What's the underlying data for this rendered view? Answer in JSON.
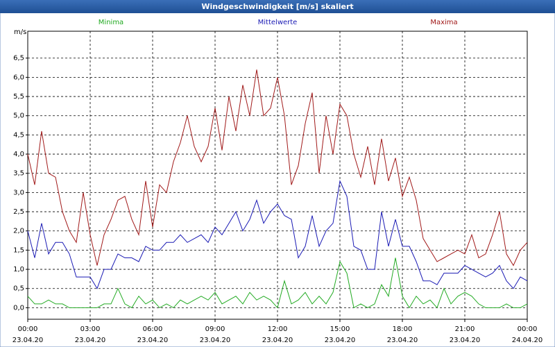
{
  "chart_data": {
    "type": "line",
    "title": "Windgeschwindigkeit [m/s] skaliert",
    "y_label": "m/s",
    "x": [
      0,
      20,
      40,
      60,
      80,
      100,
      120,
      140,
      160,
      180,
      200,
      220,
      240,
      260,
      280,
      300,
      320,
      340,
      360,
      380,
      400,
      420,
      440,
      460,
      480,
      500,
      520,
      540,
      560,
      580,
      600,
      620,
      640,
      660,
      680,
      700,
      720,
      740,
      760,
      780,
      800,
      820,
      840,
      860,
      880,
      900,
      920,
      940,
      960,
      980,
      1000,
      1020,
      1040,
      1060,
      1080,
      1100,
      1120,
      1140,
      1160,
      1180,
      1200,
      1220,
      1240,
      1260,
      1280,
      1300,
      1320,
      1340,
      1360,
      1380,
      1400,
      1420,
      1440
    ],
    "series": [
      {
        "name": "Minima",
        "color": "#22aa22",
        "values": [
          0.3,
          0.1,
          0.1,
          0.2,
          0.1,
          0.1,
          0.0,
          0.0,
          0.0,
          0.0,
          0.0,
          0.1,
          0.1,
          0.5,
          0.1,
          0.0,
          0.3,
          0.1,
          0.2,
          0.0,
          0.1,
          0.0,
          0.2,
          0.1,
          0.2,
          0.3,
          0.2,
          0.4,
          0.1,
          0.2,
          0.3,
          0.1,
          0.4,
          0.2,
          0.3,
          0.2,
          0.0,
          0.7,
          0.1,
          0.2,
          0.4,
          0.1,
          0.3,
          0.1,
          0.4,
          1.2,
          0.9,
          0.0,
          0.1,
          0.0,
          0.1,
          0.6,
          0.3,
          1.3,
          0.3,
          0.0,
          0.3,
          0.1,
          0.2,
          0.0,
          0.5,
          0.1,
          0.3,
          0.4,
          0.3,
          0.1,
          0.0,
          0.0,
          0.0,
          0.1,
          0.0,
          0.0,
          0.1
        ]
      },
      {
        "name": "Mittelwerte",
        "color": "#1a1ab4",
        "values": [
          2.0,
          1.3,
          2.2,
          1.4,
          1.7,
          1.7,
          1.4,
          0.8,
          0.8,
          0.8,
          0.5,
          1.0,
          1.0,
          1.4,
          1.3,
          1.3,
          1.2,
          1.6,
          1.5,
          1.5,
          1.7,
          1.7,
          1.9,
          1.7,
          1.8,
          1.9,
          1.7,
          2.1,
          1.9,
          2.2,
          2.5,
          2.0,
          2.3,
          2.8,
          2.2,
          2.5,
          2.7,
          2.4,
          2.3,
          1.3,
          1.6,
          2.4,
          1.6,
          2.0,
          2.2,
          3.3,
          2.9,
          1.6,
          1.5,
          1.0,
          1.0,
          2.5,
          1.6,
          2.3,
          1.6,
          1.6,
          1.2,
          0.7,
          0.7,
          0.6,
          0.9,
          0.9,
          0.9,
          1.1,
          1.0,
          0.9,
          0.8,
          0.9,
          1.1,
          0.7,
          0.5,
          0.8,
          0.7
        ]
      },
      {
        "name": "Maxima",
        "color": "#a01818",
        "values": [
          4.0,
          3.2,
          4.6,
          3.5,
          3.4,
          2.5,
          2.0,
          1.7,
          3.0,
          1.9,
          1.1,
          1.9,
          2.3,
          2.8,
          2.9,
          2.3,
          1.9,
          3.3,
          2.1,
          3.2,
          3.0,
          3.8,
          4.3,
          5.0,
          4.2,
          3.8,
          4.2,
          5.2,
          4.1,
          5.5,
          4.6,
          5.8,
          5.0,
          6.2,
          5.0,
          5.2,
          6.0,
          5.0,
          3.2,
          3.7,
          4.8,
          5.6,
          3.5,
          5.0,
          4.0,
          5.3,
          5.0,
          4.0,
          3.4,
          4.2,
          3.2,
          4.4,
          3.3,
          3.9,
          2.9,
          3.4,
          2.8,
          1.8,
          1.5,
          1.2,
          1.3,
          1.4,
          1.5,
          1.4,
          1.9,
          1.3,
          1.4,
          1.9,
          2.5,
          1.4,
          1.1,
          1.5,
          1.7
        ]
      }
    ],
    "xlim": [
      0,
      1440
    ],
    "xticks": [
      {
        "value": 0,
        "label": "00:00"
      },
      {
        "value": 180,
        "label": "03:00"
      },
      {
        "value": 360,
        "label": "06:00"
      },
      {
        "value": 540,
        "label": "09:00"
      },
      {
        "value": 720,
        "label": "12:00"
      },
      {
        "value": 900,
        "label": "15:00"
      },
      {
        "value": 1080,
        "label": "18:00"
      },
      {
        "value": 1260,
        "label": "21:00"
      },
      {
        "value": 1440,
        "label": "00:00"
      }
    ],
    "xtick_dates": [
      "23.04.20",
      "23.04.20",
      "23.04.20",
      "23.04.20",
      "23.04.20",
      "23.04.20",
      "23.04.20",
      "23.04.20",
      "24.04.20"
    ],
    "ylim": [
      -0.3,
      7.2
    ],
    "yticks": [
      {
        "value": 0,
        "label": "0,0"
      },
      {
        "value": 0.5,
        "label": "0,5"
      },
      {
        "value": 1,
        "label": "1,0"
      },
      {
        "value": 1.5,
        "label": "1,5"
      },
      {
        "value": 2,
        "label": "2,0"
      },
      {
        "value": 2.5,
        "label": "2,5"
      },
      {
        "value": 3,
        "label": "3,0"
      },
      {
        "value": 3.5,
        "label": "3,5"
      },
      {
        "value": 4,
        "label": "4,0"
      },
      {
        "value": 4.5,
        "label": "4,5"
      },
      {
        "value": 5,
        "label": "5,0"
      },
      {
        "value": 5.5,
        "label": "5,5"
      },
      {
        "value": 6,
        "label": "6,0"
      },
      {
        "value": 6.5,
        "label": "6,5"
      }
    ],
    "grid": true
  }
}
